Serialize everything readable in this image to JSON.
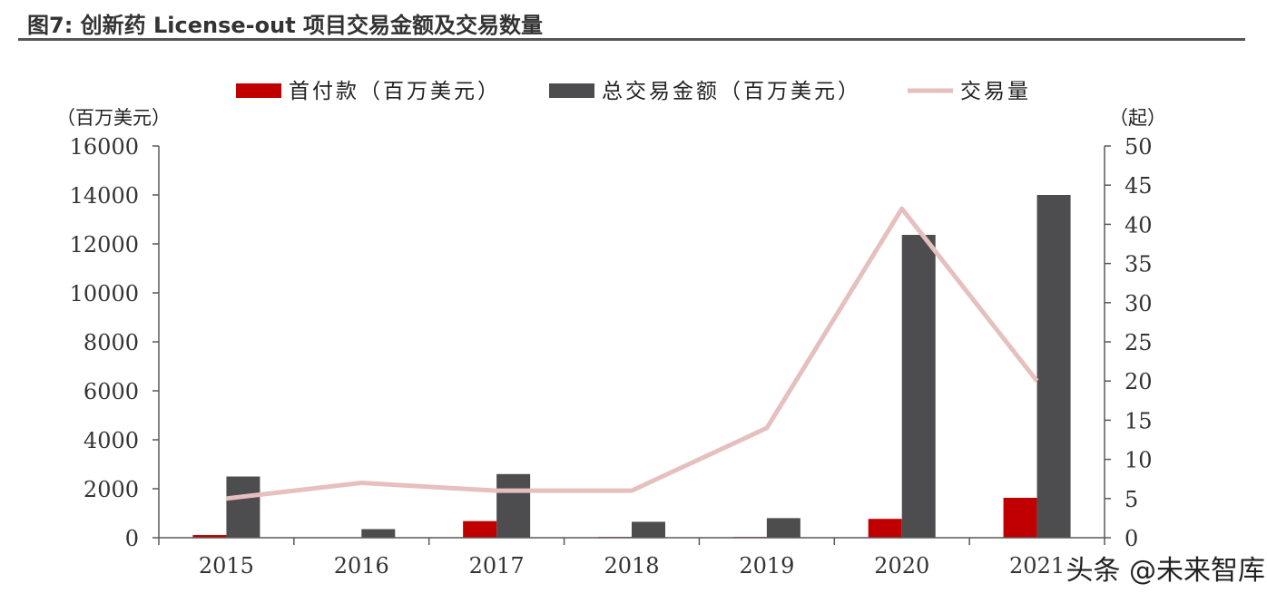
{
  "title": "图7: 创新药  License-out  项目交易金额及交易数量",
  "watermark": "头条 @未来智库",
  "chart_data": {
    "type": "bar",
    "categories": [
      "2015",
      "2016",
      "2017",
      "2018",
      "2019",
      "2020",
      "2021"
    ],
    "ylabel": "（百万美元）",
    "y2label": "（起）",
    "ylim": [
      0,
      16000
    ],
    "y2lim": [
      0,
      50
    ],
    "yticks": [
      0,
      2000,
      4000,
      6000,
      8000,
      10000,
      12000,
      14000,
      16000
    ],
    "y2ticks": [
      0,
      5,
      10,
      15,
      20,
      25,
      30,
      35,
      40,
      45,
      50
    ],
    "legend_position": "top",
    "grid": false,
    "series": [
      {
        "name": "首付款（百万美元）",
        "type": "bar",
        "axis": "left",
        "color": "#C00000",
        "values": [
          110,
          0,
          680,
          30,
          30,
          770,
          1630
        ]
      },
      {
        "name": "总交易金额（百万美元）",
        "type": "bar",
        "axis": "left",
        "color": "#4D4D4F",
        "values": [
          2500,
          350,
          2600,
          650,
          800,
          12370,
          14000
        ]
      },
      {
        "name": "交易量",
        "type": "line",
        "axis": "right",
        "color": "#E6BFBF",
        "values": [
          5,
          7,
          6,
          6,
          14,
          42,
          20
        ]
      }
    ]
  }
}
